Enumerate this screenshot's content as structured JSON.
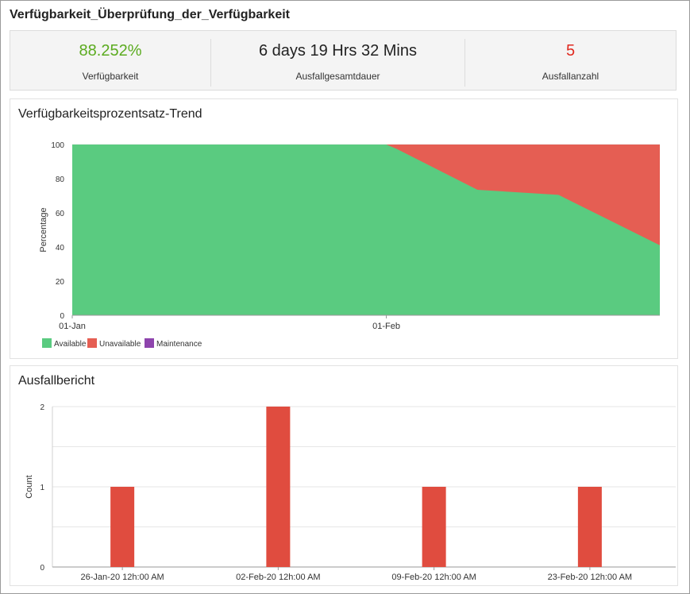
{
  "page": {
    "title": "Verfügbarkeit_Überprüfung_der_Verfügbarkeit"
  },
  "summary": [
    {
      "value": "88.252%",
      "label": "Verfügbarkeit",
      "color": "#5bab1f"
    },
    {
      "value": "6 days 19 Hrs 32 Mins",
      "label": "Ausfallgesamtdauer",
      "color": "#222222"
    },
    {
      "value": "5",
      "label": "Ausfallanzahl",
      "color": "#e0291f"
    }
  ],
  "colors": {
    "available": "#5acb80",
    "unavailable": "#e55e53",
    "maintenance": "#8e44ad",
    "bar": "#e04c3f"
  },
  "chart_data": [
    {
      "type": "area",
      "title": "Verfügbarkeitsprozentsatz-Trend",
      "xlabel": "",
      "ylabel": "Percentage",
      "ylim": [
        0,
        100
      ],
      "yticks": [
        0,
        20,
        40,
        60,
        80,
        100
      ],
      "xlim": [
        0,
        58
      ],
      "xticks": [
        {
          "x": 0,
          "label": "01-Jan"
        },
        {
          "x": 31,
          "label": "01-Feb"
        }
      ],
      "x": [
        0,
        31,
        32,
        40,
        48,
        58
      ],
      "series": [
        {
          "name": "Available",
          "values": [
            100,
            100,
            97.5,
            73.5,
            70.5,
            41
          ]
        },
        {
          "name": "Unavailable",
          "values": [
            0,
            0,
            2.5,
            26.5,
            29.5,
            59
          ]
        },
        {
          "name": "Maintenance",
          "values": [
            0,
            0,
            0,
            0,
            0,
            0
          ]
        }
      ],
      "legend": [
        "Available",
        "Unavailable",
        "Maintenance"
      ],
      "legend_position": "bottom-left"
    },
    {
      "type": "bar",
      "title": "Ausfallbericht",
      "xlabel": "",
      "ylabel": "Count",
      "ylim": [
        0,
        2
      ],
      "yticks": [
        0,
        1,
        2
      ],
      "categories": [
        "26-Jan-20 12h:00 AM",
        "02-Feb-20 12h:00 AM",
        "09-Feb-20 12h:00 AM",
        "23-Feb-20 12h:00 AM"
      ],
      "values": [
        1,
        2,
        1,
        1
      ]
    }
  ]
}
